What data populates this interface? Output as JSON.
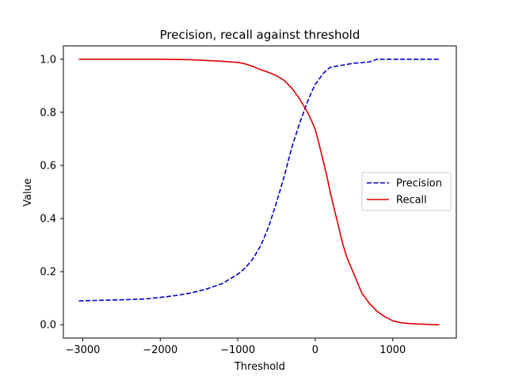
{
  "chart_data": {
    "type": "line",
    "title": "Precision, recall against threshold",
    "xlabel": "Threshold",
    "ylabel": "Value",
    "xlim": [
      -3250,
      1820
    ],
    "ylim": [
      -0.05,
      1.05
    ],
    "xticks": [
      -3000,
      -2000,
      -1000,
      0,
      1000
    ],
    "xtick_labels": [
      "−3000",
      "−2000",
      "−1000",
      "0",
      "1000"
    ],
    "yticks": [
      0.0,
      0.2,
      0.4,
      0.6,
      0.8,
      1.0
    ],
    "ytick_labels": [
      "0.0",
      "0.2",
      "0.4",
      "0.6",
      "0.8",
      "1.0"
    ],
    "grid": false,
    "legend_position": "center-right",
    "series": [
      {
        "name": "Precision",
        "color": "#0000cc",
        "style": "dashed",
        "x": [
          -3050,
          -2500,
          -2200,
          -2000,
          -1800,
          -1600,
          -1400,
          -1200,
          -1000,
          -900,
          -800,
          -700,
          -600,
          -500,
          -400,
          -300,
          -200,
          -150,
          -100,
          -50,
          0,
          50,
          100,
          150,
          200,
          300,
          400,
          500,
          600,
          700,
          750,
          800,
          900,
          1000,
          1200,
          1400,
          1600
        ],
        "y": [
          0.09,
          0.094,
          0.097,
          0.103,
          0.11,
          0.12,
          0.135,
          0.155,
          0.19,
          0.215,
          0.25,
          0.3,
          0.37,
          0.46,
          0.56,
          0.67,
          0.76,
          0.8,
          0.84,
          0.875,
          0.905,
          0.925,
          0.945,
          0.96,
          0.97,
          0.975,
          0.98,
          0.985,
          0.987,
          0.99,
          0.995,
          1.0,
          1.0,
          1.0,
          1.0,
          1.0,
          1.0
        ]
      },
      {
        "name": "Recall",
        "color": "#dd0000",
        "style": "solid",
        "x": [
          -3050,
          -2500,
          -2000,
          -1600,
          -1200,
          -1000,
          -900,
          -800,
          -700,
          -600,
          -500,
          -400,
          -300,
          -200,
          -150,
          -100,
          -50,
          0,
          50,
          100,
          150,
          200,
          250,
          300,
          350,
          400,
          500,
          600,
          700,
          800,
          900,
          1000,
          1100,
          1200,
          1300,
          1400,
          1500,
          1600
        ],
        "y": [
          1.0,
          1.0,
          1.0,
          0.998,
          0.992,
          0.988,
          0.982,
          0.972,
          0.96,
          0.95,
          0.938,
          0.92,
          0.89,
          0.85,
          0.825,
          0.8,
          0.77,
          0.735,
          0.68,
          0.62,
          0.56,
          0.49,
          0.43,
          0.37,
          0.31,
          0.26,
          0.19,
          0.12,
          0.08,
          0.05,
          0.03,
          0.015,
          0.008,
          0.005,
          0.003,
          0.002,
          0.001,
          0.0
        ]
      }
    ]
  }
}
